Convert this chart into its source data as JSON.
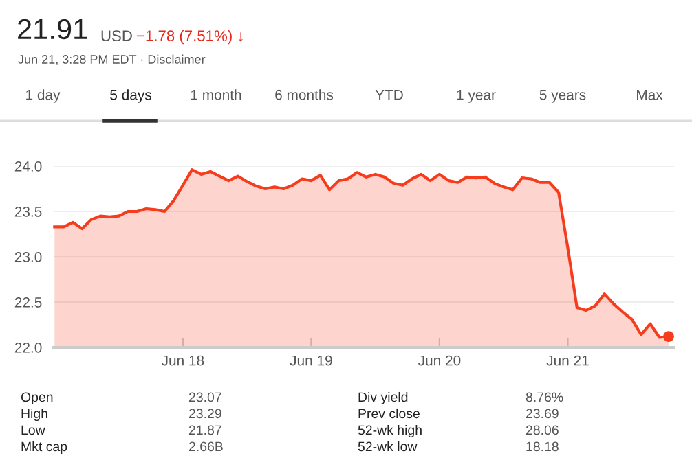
{
  "chart_data": {
    "type": "area",
    "title": "21.91",
    "subtitle": "Jun 21, 3:28 PM EDT · Disclaimer",
    "annotations": [
      "USD",
      "−1.78 (7.51%) ↓",
      "1 day",
      "5 days",
      "1 month",
      "6 months",
      "YTD",
      "1 year",
      "5 years",
      "Max",
      "Open",
      "23.07",
      "High",
      "23.29",
      "Low",
      "21.87",
      "Mkt cap",
      "2.66B",
      "Div yield",
      "8.76%",
      "Prev close",
      "23.69",
      "52-wk high",
      "28.06",
      "52-wk low",
      "18.18"
    ],
    "series": [
      {
        "color": "#f53d1e",
        "marker": "none",
        "values": [
          23.33,
          23.33,
          23.38,
          23.31,
          23.41,
          23.45,
          23.44,
          23.45,
          23.5,
          23.5,
          23.53,
          23.52,
          23.5,
          23.62,
          23.79,
          23.96,
          23.91,
          23.94,
          23.89,
          23.84,
          23.89,
          23.83,
          23.78,
          23.75,
          23.77,
          23.75,
          23.79,
          23.86,
          23.84,
          23.9,
          23.74,
          23.84,
          23.86,
          23.93,
          23.88,
          23.91,
          23.88,
          23.81,
          23.79,
          23.86,
          23.91,
          23.84,
          23.91,
          23.84,
          23.82,
          23.88,
          23.87,
          23.88,
          23.81,
          23.77,
          23.74,
          23.87,
          23.86,
          23.82,
          23.82,
          23.71,
          23.1,
          22.44,
          22.41,
          22.46,
          22.59,
          22.48,
          22.39,
          22.31,
          22.14,
          22.26,
          22.11,
          22.12
        ]
      },
      {
        "type": "scatter",
        "color": "#f53d1e",
        "marker": "circle",
        "values": [
          null,
          null,
          null,
          null,
          null,
          null,
          null,
          null,
          null,
          null,
          null,
          null,
          null,
          null,
          null,
          null,
          null,
          null,
          null,
          null,
          null,
          null,
          null,
          null,
          null,
          null,
          null,
          null,
          null,
          null,
          null,
          null,
          null,
          null,
          null,
          null,
          null,
          null,
          null,
          null,
          null,
          null,
          null,
          null,
          null,
          null,
          null,
          null,
          null,
          null,
          null,
          null,
          null,
          null,
          null,
          null,
          null,
          null,
          null,
          null,
          null,
          null,
          null,
          null,
          null,
          null,
          null,
          22.12
        ]
      }
    ],
    "categories": [
      null,
      null,
      null,
      null,
      null,
      null,
      null,
      null,
      null,
      null,
      null,
      null,
      null,
      null,
      "Jun 18",
      null,
      null,
      null,
      null,
      null,
      null,
      null,
      null,
      null,
      null,
      null,
      null,
      null,
      "Jun 19",
      null,
      null,
      null,
      null,
      null,
      null,
      null,
      null,
      null,
      null,
      null,
      null,
      null,
      "Jun 20",
      null,
      null,
      null,
      null,
      null,
      null,
      null,
      null,
      null,
      null,
      null,
      null,
      null,
      "Jun 21",
      null,
      null,
      null,
      null,
      null,
      null,
      null,
      null,
      null,
      null,
      null
    ],
    "ylim": [
      22.0,
      24.0
    ],
    "yticks": [
      {
        "value": 22,
        "label": "22.0"
      },
      {
        "value": 22.5,
        "label": "22.5"
      },
      {
        "value": 23,
        "label": "23.0"
      },
      {
        "value": 23.5,
        "label": "23.5"
      },
      {
        "value": 24,
        "label": "24.0"
      }
    ],
    "grid": "y",
    "legend": false
  }
}
